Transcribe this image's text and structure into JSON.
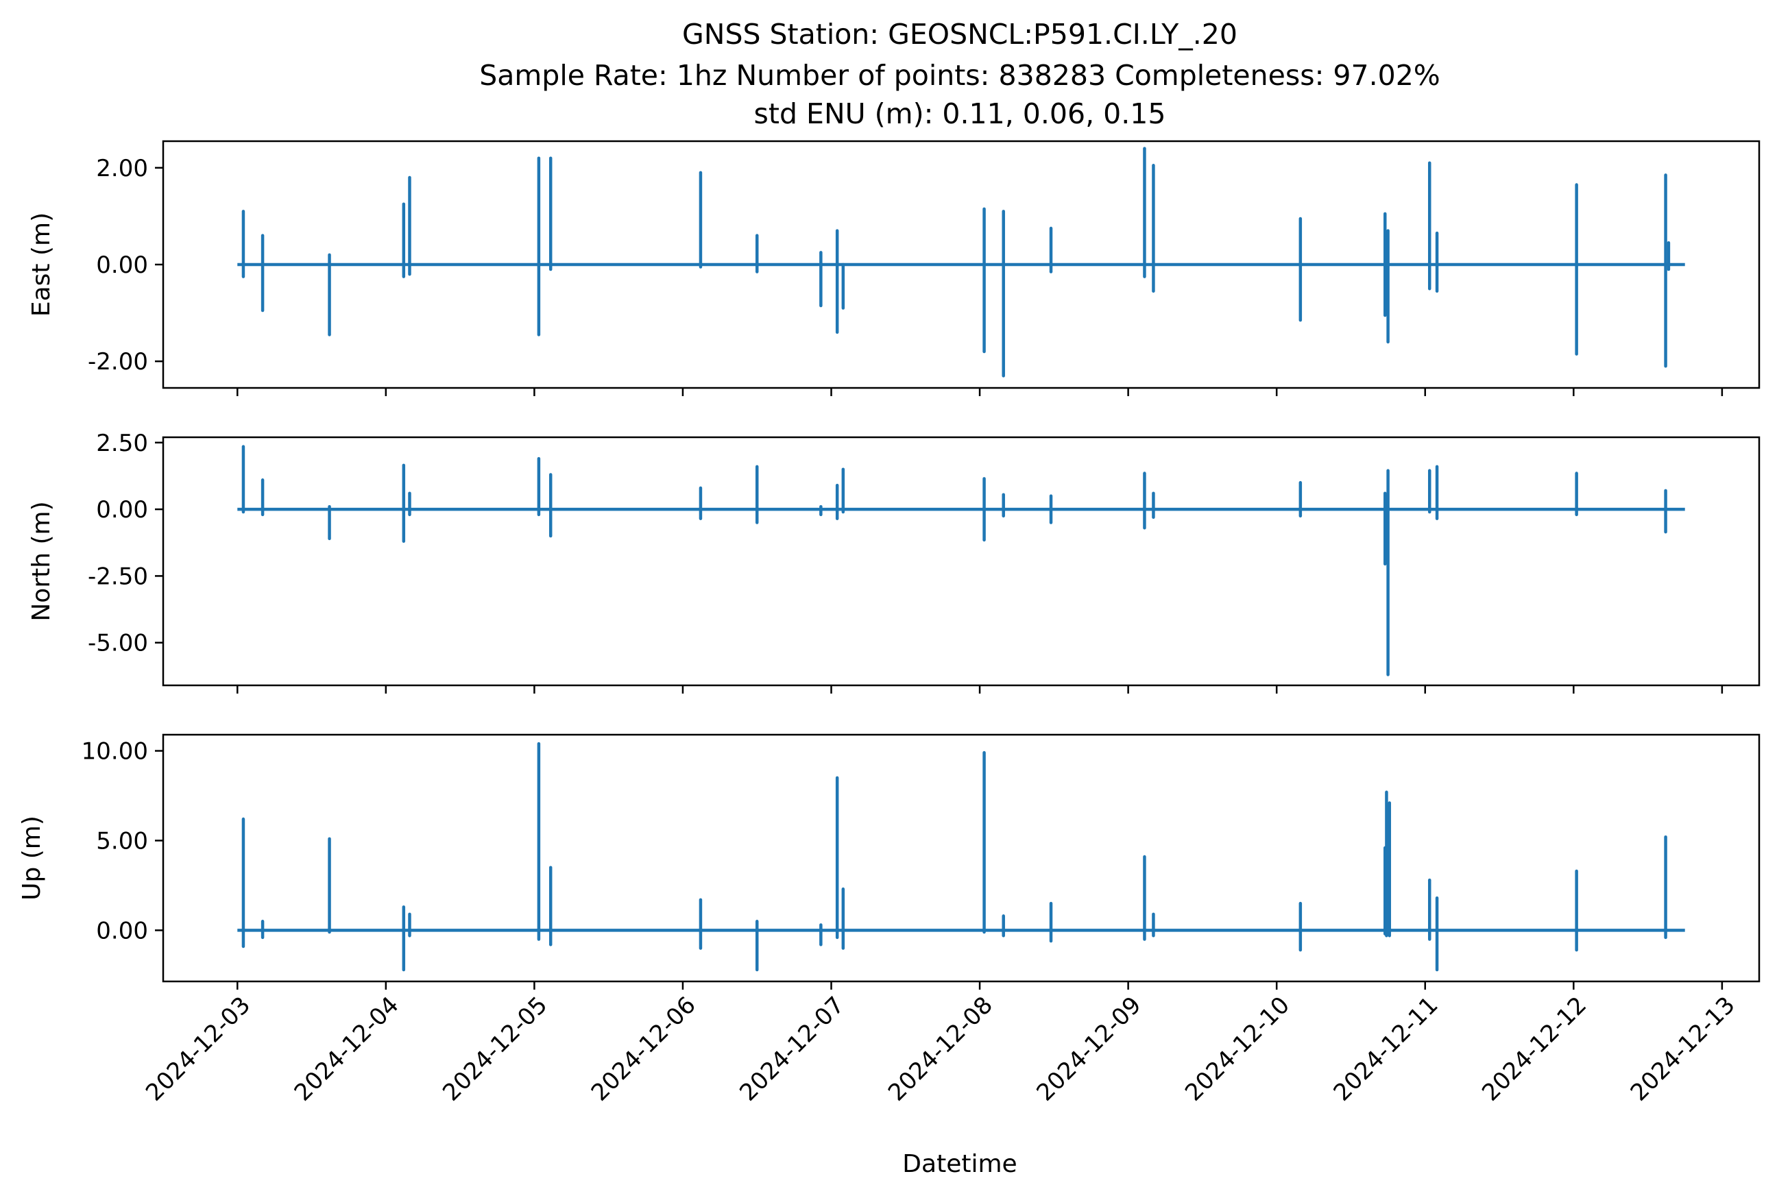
{
  "chart_data": {
    "type": "line",
    "title_lines": [
      "GNSS Station: GEOSNCL:P591.CI.LY_.20",
      "Sample Rate: 1hz   Number of points: 838283    Completeness:  97.02%",
      "std ENU (m):  0.11, 0.06, 0.15"
    ],
    "xlabel": "Datetime",
    "x_tick_labels": [
      "2024-12-03",
      "2024-12-04",
      "2024-12-05",
      "2024-12-06",
      "2024-12-07",
      "2024-12-08",
      "2024-12-09",
      "2024-12-10",
      "2024-12-11",
      "2024-12-12",
      "2024-12-13"
    ],
    "x_range_days": [
      -0.5,
      10.25
    ],
    "x_data_range_days": [
      0.0,
      9.75
    ],
    "series_color": "#1f77b4",
    "grid": false,
    "panels": [
      {
        "ylabel": "East (m)",
        "ylim": [
          -2.55,
          2.55
        ],
        "y_ticks": [
          2.0,
          0.0,
          -2.0
        ],
        "y_tick_labels": [
          "2.00",
          "0.00",
          "-2.00"
        ],
        "spikes": [
          {
            "x": 0.04,
            "min": -0.25,
            "max": 1.1
          },
          {
            "x": 0.17,
            "min": -0.95,
            "max": 0.6
          },
          {
            "x": 0.62,
            "min": -1.45,
            "max": 0.2
          },
          {
            "x": 1.12,
            "min": -0.25,
            "max": 1.25
          },
          {
            "x": 1.16,
            "min": -0.2,
            "max": 1.8
          },
          {
            "x": 2.03,
            "min": -1.45,
            "max": 2.2
          },
          {
            "x": 2.11,
            "min": -0.1,
            "max": 2.2
          },
          {
            "x": 3.12,
            "min": -0.05,
            "max": 1.9
          },
          {
            "x": 3.5,
            "min": -0.15,
            "max": 0.6
          },
          {
            "x": 3.93,
            "min": -0.85,
            "max": 0.25
          },
          {
            "x": 4.04,
            "min": -1.4,
            "max": 0.7
          },
          {
            "x": 4.08,
            "min": -0.9,
            "max": 0.0
          },
          {
            "x": 5.03,
            "min": -1.8,
            "max": 1.15
          },
          {
            "x": 5.16,
            "min": -2.3,
            "max": 1.1
          },
          {
            "x": 5.48,
            "min": -0.15,
            "max": 0.75
          },
          {
            "x": 6.11,
            "min": -0.25,
            "max": 2.4
          },
          {
            "x": 6.17,
            "min": -0.55,
            "max": 2.05
          },
          {
            "x": 7.16,
            "min": -1.15,
            "max": 0.95
          },
          {
            "x": 7.73,
            "min": -1.05,
            "max": 1.05
          },
          {
            "x": 7.75,
            "min": -1.6,
            "max": 0.7
          },
          {
            "x": 8.03,
            "min": -0.5,
            "max": 2.1
          },
          {
            "x": 8.08,
            "min": -0.55,
            "max": 0.65
          },
          {
            "x": 9.02,
            "min": -1.85,
            "max": 1.65
          },
          {
            "x": 9.62,
            "min": -2.1,
            "max": 1.85
          },
          {
            "x": 9.64,
            "min": -0.1,
            "max": 0.45
          }
        ]
      },
      {
        "ylabel": "North (m)",
        "ylim": [
          -6.6,
          2.7
        ],
        "y_ticks": [
          2.5,
          0.0,
          -2.5,
          -5.0
        ],
        "y_tick_labels": [
          "2.50",
          "0.00",
          "-2.50",
          "-5.00"
        ],
        "spikes": [
          {
            "x": 0.04,
            "min": -0.1,
            "max": 2.35
          },
          {
            "x": 0.17,
            "min": -0.2,
            "max": 1.1
          },
          {
            "x": 0.62,
            "min": -1.1,
            "max": 0.1
          },
          {
            "x": 1.12,
            "min": -1.2,
            "max": 1.65
          },
          {
            "x": 1.16,
            "min": -0.2,
            "max": 0.6
          },
          {
            "x": 2.03,
            "min": -0.2,
            "max": 1.9
          },
          {
            "x": 2.11,
            "min": -1.0,
            "max": 1.3
          },
          {
            "x": 3.12,
            "min": -0.35,
            "max": 0.8
          },
          {
            "x": 3.5,
            "min": -0.5,
            "max": 1.6
          },
          {
            "x": 3.93,
            "min": -0.2,
            "max": 0.1
          },
          {
            "x": 4.04,
            "min": -0.35,
            "max": 0.9
          },
          {
            "x": 4.08,
            "min": -0.1,
            "max": 1.5
          },
          {
            "x": 5.03,
            "min": -1.15,
            "max": 1.15
          },
          {
            "x": 5.16,
            "min": -0.25,
            "max": 0.55
          },
          {
            "x": 5.48,
            "min": -0.5,
            "max": 0.5
          },
          {
            "x": 6.11,
            "min": -0.7,
            "max": 1.35
          },
          {
            "x": 6.17,
            "min": -0.3,
            "max": 0.6
          },
          {
            "x": 7.16,
            "min": -0.25,
            "max": 1.0
          },
          {
            "x": 7.73,
            "min": -2.05,
            "max": 0.6
          },
          {
            "x": 7.75,
            "min": -6.2,
            "max": 1.45
          },
          {
            "x": 8.03,
            "min": -0.1,
            "max": 1.45
          },
          {
            "x": 8.08,
            "min": -0.35,
            "max": 1.6
          },
          {
            "x": 9.02,
            "min": -0.2,
            "max": 1.35
          },
          {
            "x": 9.62,
            "min": -0.85,
            "max": 0.7
          }
        ]
      },
      {
        "ylabel": "Up (m)",
        "ylim": [
          -2.85,
          10.9
        ],
        "y_ticks": [
          10.0,
          5.0,
          0.0
        ],
        "y_tick_labels": [
          "10.00",
          "5.00",
          "0.00"
        ],
        "spikes": [
          {
            "x": 0.04,
            "min": -0.9,
            "max": 6.2
          },
          {
            "x": 0.17,
            "min": -0.4,
            "max": 0.5
          },
          {
            "x": 0.62,
            "min": -0.1,
            "max": 5.1
          },
          {
            "x": 1.12,
            "min": -2.2,
            "max": 1.3
          },
          {
            "x": 1.16,
            "min": -0.3,
            "max": 0.9
          },
          {
            "x": 2.03,
            "min": -0.5,
            "max": 10.4
          },
          {
            "x": 2.11,
            "min": -0.8,
            "max": 3.5
          },
          {
            "x": 3.12,
            "min": -1.0,
            "max": 1.7
          },
          {
            "x": 3.5,
            "min": -2.2,
            "max": 0.5
          },
          {
            "x": 3.93,
            "min": -0.8,
            "max": 0.3
          },
          {
            "x": 4.04,
            "min": -0.4,
            "max": 8.5
          },
          {
            "x": 4.08,
            "min": -1.0,
            "max": 2.3
          },
          {
            "x": 5.03,
            "min": -0.1,
            "max": 9.9
          },
          {
            "x": 5.16,
            "min": -0.3,
            "max": 0.8
          },
          {
            "x": 5.48,
            "min": -0.6,
            "max": 1.5
          },
          {
            "x": 6.11,
            "min": -0.5,
            "max": 4.1
          },
          {
            "x": 6.17,
            "min": -0.3,
            "max": 0.9
          },
          {
            "x": 7.16,
            "min": -1.1,
            "max": 1.5
          },
          {
            "x": 7.73,
            "min": -0.2,
            "max": 4.6
          },
          {
            "x": 7.74,
            "min": -0.3,
            "max": 7.7
          },
          {
            "x": 7.76,
            "min": -0.3,
            "max": 7.1
          },
          {
            "x": 8.03,
            "min": -0.5,
            "max": 2.8
          },
          {
            "x": 8.08,
            "min": -2.2,
            "max": 1.8
          },
          {
            "x": 9.02,
            "min": -1.1,
            "max": 3.3
          },
          {
            "x": 9.62,
            "min": -0.4,
            "max": 5.2
          }
        ]
      }
    ]
  }
}
